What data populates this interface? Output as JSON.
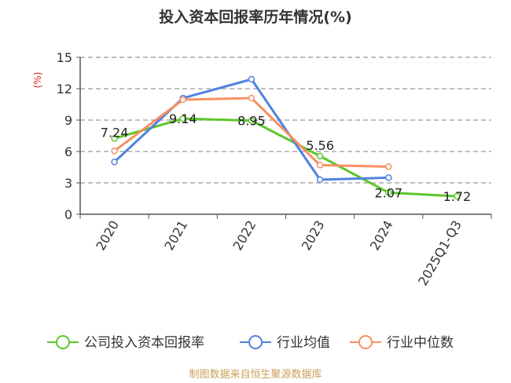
{
  "chart_data": {
    "type": "line",
    "title": "投入资本回报率历年情况(%)",
    "ylabel": "(%)",
    "categories": [
      "2020",
      "2021",
      "2022",
      "2023",
      "2024",
      "2025Q1-Q3"
    ],
    "ylim": [
      0,
      15
    ],
    "yticks": [
      0,
      3,
      6,
      9,
      12,
      15
    ],
    "grid": true,
    "legend_position": "bottom",
    "series": [
      {
        "name": "公司投入资本回报率",
        "color": "#5cc72a",
        "values": [
          7.24,
          9.14,
          8.95,
          5.56,
          2.07,
          1.72
        ],
        "labels": [
          "7.24",
          "9.14",
          "8.95",
          "5.56",
          "2.07",
          "1.72"
        ]
      },
      {
        "name": "行业均值",
        "color": "#4f82e0",
        "values": [
          5.0,
          11.1,
          12.9,
          3.3,
          3.5,
          null
        ]
      },
      {
        "name": "行业中位数",
        "color": "#f69062",
        "values": [
          6.05,
          10.95,
          11.1,
          4.7,
          4.55,
          null
        ]
      }
    ]
  },
  "source": "制图数据来自恒生聚源数据库"
}
